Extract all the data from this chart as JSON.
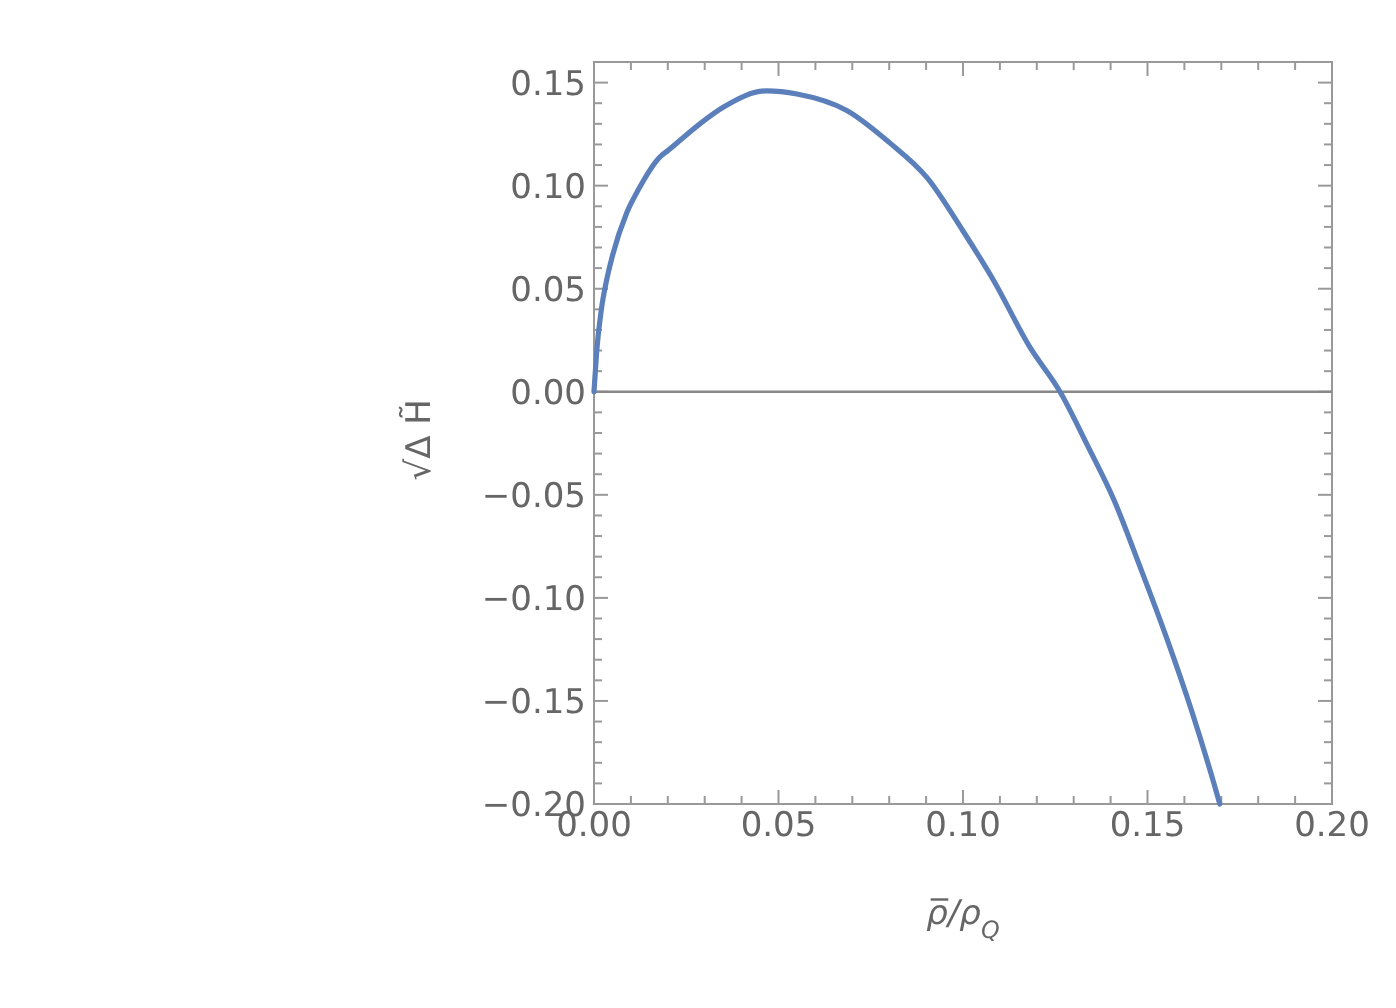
{
  "chart_data": {
    "type": "line",
    "xlabel": "ρ̅/ρ$_{Q}$",
    "ylabel": "√Δ H̃",
    "xlim": [
      0,
      0.2
    ],
    "ylim": [
      -0.2,
      0.16
    ],
    "xticks": [
      {
        "value": 0,
        "label": "0.00"
      },
      {
        "value": 0.01,
        "label": null
      },
      {
        "value": 0.02,
        "label": null
      },
      {
        "value": 0.03,
        "label": null
      },
      {
        "value": 0.04,
        "label": null
      },
      {
        "value": 0.05,
        "label": "0.05"
      },
      {
        "value": 0.06,
        "label": null
      },
      {
        "value": 0.07,
        "label": null
      },
      {
        "value": 0.08,
        "label": null
      },
      {
        "value": 0.09,
        "label": null
      },
      {
        "value": 0.1,
        "label": "0.10"
      },
      {
        "value": 0.11,
        "label": null
      },
      {
        "value": 0.12,
        "label": null
      },
      {
        "value": 0.13,
        "label": null
      },
      {
        "value": 0.14,
        "label": null
      },
      {
        "value": 0.15,
        "label": "0.15"
      },
      {
        "value": 0.16,
        "label": null
      },
      {
        "value": 0.17,
        "label": null
      },
      {
        "value": 0.18,
        "label": null
      },
      {
        "value": 0.19,
        "label": null
      },
      {
        "value": 0.2,
        "label": "0.20"
      }
    ],
    "yticks": [
      {
        "value": -0.2,
        "label": "−0.20"
      },
      {
        "value": -0.19,
        "label": null
      },
      {
        "value": -0.18,
        "label": null
      },
      {
        "value": -0.17,
        "label": null
      },
      {
        "value": -0.16,
        "label": null
      },
      {
        "value": -0.15,
        "label": "−0.15"
      },
      {
        "value": -0.14,
        "label": null
      },
      {
        "value": -0.13,
        "label": null
      },
      {
        "value": -0.12,
        "label": null
      },
      {
        "value": -0.11,
        "label": null
      },
      {
        "value": -0.1,
        "label": "−0.10"
      },
      {
        "value": -0.09,
        "label": null
      },
      {
        "value": -0.08,
        "label": null
      },
      {
        "value": -0.07,
        "label": null
      },
      {
        "value": -0.06,
        "label": null
      },
      {
        "value": -0.05,
        "label": "−0.05"
      },
      {
        "value": -0.04,
        "label": null
      },
      {
        "value": -0.03,
        "label": null
      },
      {
        "value": -0.02,
        "label": null
      },
      {
        "value": -0.01,
        "label": null
      },
      {
        "value": 0,
        "label": "0.00"
      },
      {
        "value": 0.01,
        "label": null
      },
      {
        "value": 0.02,
        "label": null
      },
      {
        "value": 0.03,
        "label": null
      },
      {
        "value": 0.04,
        "label": null
      },
      {
        "value": 0.05,
        "label": "0.05"
      },
      {
        "value": 0.06,
        "label": null
      },
      {
        "value": 0.07,
        "label": null
      },
      {
        "value": 0.08,
        "label": null
      },
      {
        "value": 0.09,
        "label": null
      },
      {
        "value": 0.1,
        "label": "0.10"
      },
      {
        "value": 0.11,
        "label": null
      },
      {
        "value": 0.12,
        "label": null
      },
      {
        "value": 0.13,
        "label": null
      },
      {
        "value": 0.14,
        "label": null
      },
      {
        "value": 0.15,
        "label": "0.15"
      },
      {
        "value": 0.16,
        "label": null
      }
    ],
    "ref_lines": [
      {
        "axis": "y",
        "value": 0,
        "color": "#888888"
      }
    ],
    "series": [
      {
        "color": "#5b7fbb",
        "x": [
          0,
          0.0007,
          0.002,
          0.0034,
          0.005,
          0.0089,
          0.012,
          0.0179,
          0.02,
          0.0287,
          0.035,
          0.0468,
          0.055,
          0.0685,
          0.08,
          0.0902,
          0.1,
          0.1083,
          0.118,
          0.1263,
          0.134,
          0.1408,
          0.148,
          0.1553,
          0.162,
          0.168,
          0.1696
        ],
        "values": [
          0,
          0.019,
          0.04,
          0.054,
          0.066,
          0.087,
          0.098,
          0.114,
          0.117,
          0.13,
          0.138,
          0.146,
          0.1445,
          0.1365,
          0.121,
          0.104,
          0.078,
          0.054,
          0.022,
          0,
          -0.027,
          -0.052,
          -0.085,
          -0.12,
          -0.155,
          -0.19,
          -0.2
        ]
      }
    ]
  }
}
